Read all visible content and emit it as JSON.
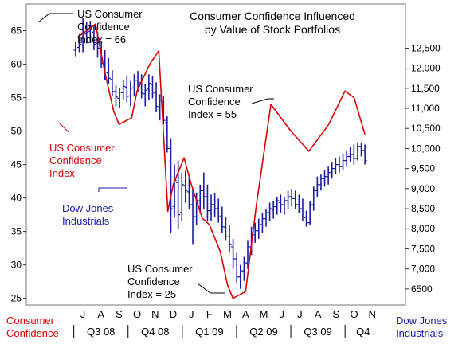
{
  "chart_data": {
    "type": "line",
    "title_lines": [
      "Consumer Confidence Influenced",
      "by Value of Stock Portfolios"
    ],
    "left_axis": {
      "ticks": [
        25,
        30,
        35,
        40,
        45,
        50,
        55,
        60,
        65
      ],
      "range": [
        24,
        69
      ]
    },
    "right_axis": {
      "ticks": [
        "6500",
        "7,000",
        "7,500",
        "8,000",
        "8,500",
        "9,000",
        "9,500",
        "10,000",
        "10,500",
        "11,000",
        "11,500",
        "12,000",
        "12,500"
      ],
      "tick_values": [
        6500,
        7000,
        7500,
        8000,
        8500,
        9000,
        9500,
        10000,
        10500,
        11000,
        11500,
        12000,
        12500
      ],
      "range": [
        6100,
        13600
      ]
    },
    "x_axis": {
      "months": [
        "J",
        "A",
        "S",
        "O",
        "N",
        "D",
        "J",
        "F",
        "M",
        "A",
        "M",
        "J",
        "J",
        "A",
        "S",
        "O",
        "N"
      ],
      "quarters": [
        "Q3 08",
        "Q4 08",
        "Q1 09",
        "Q2 09",
        "Q3 09",
        "Q4"
      ]
    },
    "left_axis_caption": [
      "Consumer",
      "Confidence"
    ],
    "right_axis_caption": [
      "Dow Jones",
      "Industrials"
    ],
    "series": [
      {
        "name": "US Consumer Confidence Index",
        "axis": "left",
        "color": "#dd0000",
        "x": [
          -0.3,
          0.7,
          1.2,
          1.7,
          2.0,
          2.7,
          3.0,
          3.7,
          4.2,
          4.7,
          5.0,
          5.6,
          6.0,
          6.6,
          7.0,
          7.6,
          8.0,
          8.3,
          9.0,
          9.6,
          10.4,
          11.5,
          12.5,
          13.6,
          14.5,
          15.0,
          15.6
        ],
        "values": [
          64,
          66,
          59,
          53,
          51,
          52,
          56,
          60,
          62,
          38,
          42,
          46,
          42,
          37,
          36,
          32,
          27,
          25,
          26,
          39,
          54,
          50,
          47,
          51,
          56,
          55,
          49.5
        ]
      },
      {
        "name": "Dow Jones Industrials",
        "axis": "right",
        "color": "#1a1aaa",
        "x_start": -0.4,
        "x_end": 15.6,
        "bars": [
          [
            12450,
            12650,
            12300,
            12480
          ],
          [
            12520,
            12850,
            12400,
            12600
          ],
          [
            12580,
            13250,
            12400,
            12900
          ],
          [
            12850,
            13150,
            12620,
            12900
          ],
          [
            12920,
            13180,
            12650,
            12980
          ],
          [
            12900,
            13080,
            12450,
            12600
          ],
          [
            12620,
            12900,
            12260,
            12500
          ],
          [
            12480,
            12650,
            12000,
            12120
          ],
          [
            12130,
            12450,
            11700,
            11900
          ],
          [
            11880,
            12250,
            11600,
            11750
          ],
          [
            11720,
            11950,
            11300,
            11420
          ],
          [
            11420,
            11580,
            11050,
            11280
          ],
          [
            11250,
            11500,
            11000,
            11400
          ],
          [
            11390,
            11700,
            11200,
            11550
          ],
          [
            11530,
            11820,
            11150,
            11300
          ],
          [
            11310,
            11680,
            11050,
            11500
          ],
          [
            11510,
            11850,
            11300,
            11700
          ],
          [
            11700,
            11930,
            11420,
            11650
          ],
          [
            11640,
            11850,
            11250,
            11380
          ],
          [
            11360,
            11600,
            11050,
            11450
          ],
          [
            11480,
            11850,
            11200,
            11620
          ],
          [
            11600,
            11800,
            11250,
            11400
          ],
          [
            11380,
            11650,
            10900,
            11050
          ],
          [
            11020,
            11350,
            10700,
            11200
          ],
          [
            11150,
            11300,
            10600,
            10700
          ],
          [
            10650,
            10800,
            9900,
            10000
          ],
          [
            10000,
            10250,
            7900,
            8500
          ],
          [
            8550,
            9600,
            8300,
            9200
          ],
          [
            9150,
            9700,
            8000,
            8350
          ],
          [
            8400,
            9400,
            8200,
            9100
          ],
          [
            9080,
            9450,
            8650,
            8950
          ],
          [
            8920,
            9300,
            8500,
            8600
          ],
          [
            8600,
            9000,
            7600,
            8300
          ],
          [
            8300,
            8900,
            8100,
            8700
          ],
          [
            8700,
            9100,
            8400,
            8950
          ],
          [
            8950,
            9400,
            8500,
            8800
          ],
          [
            8800,
            9100,
            8200,
            8450
          ],
          [
            8450,
            8850,
            8200,
            8600
          ],
          [
            8600,
            8900,
            8300,
            8500
          ],
          [
            8500,
            8750,
            8150,
            8300
          ],
          [
            8320,
            8550,
            7900,
            8050
          ],
          [
            8040,
            8300,
            7700,
            7800
          ],
          [
            7800,
            8100,
            7400,
            7600
          ],
          [
            7550,
            7750,
            7000,
            7250
          ],
          [
            7250,
            7400,
            6650,
            6800
          ],
          [
            6800,
            7100,
            6500,
            6950
          ],
          [
            6950,
            7300,
            6700,
            7150
          ],
          [
            7150,
            7700,
            7000,
            7550
          ],
          [
            7550,
            8050,
            7350,
            7900
          ],
          [
            7850,
            8150,
            7650,
            7950
          ],
          [
            7950,
            8250,
            7750,
            8100
          ],
          [
            8100,
            8400,
            7900,
            8250
          ],
          [
            8250,
            8500,
            8050,
            8400
          ],
          [
            8400,
            8650,
            8200,
            8500
          ],
          [
            8480,
            8700,
            8250,
            8550
          ],
          [
            8550,
            8800,
            8350,
            8700
          ],
          [
            8650,
            8850,
            8400,
            8600
          ],
          [
            8600,
            8800,
            8350,
            8700
          ],
          [
            8700,
            8950,
            8500,
            8800
          ],
          [
            8800,
            9000,
            8550,
            8750
          ],
          [
            8750,
            8950,
            8500,
            8600
          ],
          [
            8600,
            8850,
            8400,
            8500
          ],
          [
            8500,
            8750,
            8200,
            8300
          ],
          [
            8280,
            8450,
            8050,
            8150
          ],
          [
            8150,
            8700,
            8100,
            8600
          ],
          [
            8600,
            9050,
            8450,
            8950
          ],
          [
            8950,
            9300,
            8800,
            9100
          ],
          [
            9100,
            9350,
            8950,
            9250
          ],
          [
            9250,
            9450,
            9050,
            9300
          ],
          [
            9300,
            9550,
            9100,
            9400
          ],
          [
            9400,
            9650,
            9250,
            9500
          ],
          [
            9500,
            9750,
            9350,
            9600
          ],
          [
            9600,
            9800,
            9400,
            9550
          ],
          [
            9550,
            9850,
            9450,
            9700
          ],
          [
            9700,
            9950,
            9550,
            9800
          ],
          [
            9800,
            10050,
            9650,
            9850
          ],
          [
            9850,
            10100,
            9600,
            9750
          ],
          [
            9750,
            10150,
            9700,
            10050
          ],
          [
            10050,
            10150,
            9800,
            9950
          ],
          [
            9950,
            10100,
            9600,
            9700
          ]
        ]
      }
    ],
    "annotations": [
      {
        "lines": [
          "US Consumer",
          "Confidence",
          "Index = 66"
        ],
        "color": "#000000"
      },
      {
        "lines": [
          "US Consumer",
          "Confidence",
          "Index = 55"
        ],
        "color": "#000000"
      },
      {
        "lines": [
          "US Consumer",
          "Confidence",
          "Index = 25"
        ],
        "color": "#000000"
      },
      {
        "lines": [
          "US Consumer",
          "Confidence",
          "Index"
        ],
        "color": "#dd0000"
      },
      {
        "lines": [
          "Dow Jones",
          "Industrials"
        ],
        "color": "#1a1aaa"
      }
    ],
    "grid": false,
    "legend": "none"
  }
}
